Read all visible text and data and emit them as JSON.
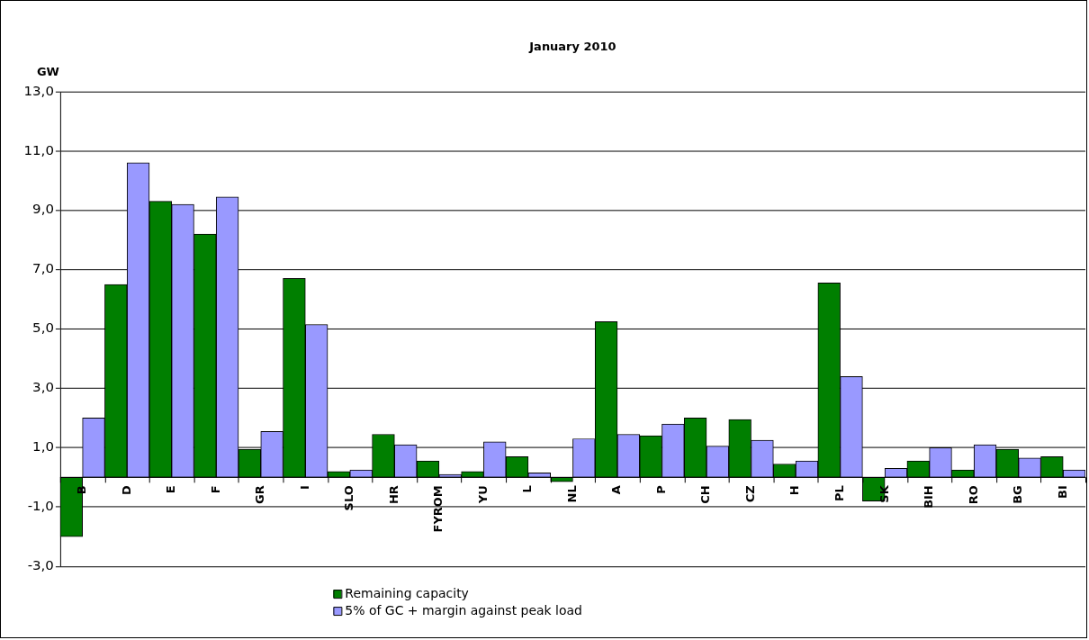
{
  "chart_data": {
    "type": "bar",
    "title": "January 2010",
    "ylabel": "GW",
    "categories": [
      "B",
      "D",
      "E",
      "F",
      "GR",
      "I",
      "SLO",
      "HR",
      "FYROM",
      "YU",
      "L",
      "NL",
      "A",
      "P",
      "CH",
      "CZ",
      "H",
      "PL",
      "SK",
      "BIH",
      "RO",
      "BG",
      "BI"
    ],
    "series": [
      {
        "name": "Remaining capacity",
        "color": "#007f00",
        "values": [
          -2.0,
          6.5,
          9.3,
          8.2,
          0.95,
          6.7,
          0.2,
          1.45,
          0.55,
          0.2,
          0.7,
          -0.15,
          5.25,
          1.4,
          2.0,
          1.95,
          0.45,
          6.55,
          -0.8,
          0.55,
          0.25,
          0.95,
          0.7
        ]
      },
      {
        "name": "5% of GC + margin against peak load",
        "color": "#9999ff",
        "values": [
          2.0,
          10.6,
          9.2,
          9.45,
          1.55,
          5.15,
          0.25,
          1.1,
          0.1,
          1.2,
          0.15,
          1.3,
          1.45,
          1.8,
          1.05,
          1.25,
          0.55,
          3.4,
          0.3,
          1.0,
          1.1,
          0.65,
          0.25
        ]
      }
    ],
    "ylim": [
      -3,
      13
    ],
    "yticks": [
      {
        "value": -3,
        "label": "-3,0"
      },
      {
        "value": -1,
        "label": "-1,0"
      },
      {
        "value": 1,
        "label": "1,0"
      },
      {
        "value": 3,
        "label": "3,0"
      },
      {
        "value": 5,
        "label": "5,0"
      },
      {
        "value": 7,
        "label": "7,0"
      },
      {
        "value": 9,
        "label": "9,0"
      },
      {
        "value": 11,
        "label": "11,0"
      },
      {
        "value": 13,
        "label": "13,0"
      }
    ],
    "grid": "y",
    "legend": "bottom"
  }
}
